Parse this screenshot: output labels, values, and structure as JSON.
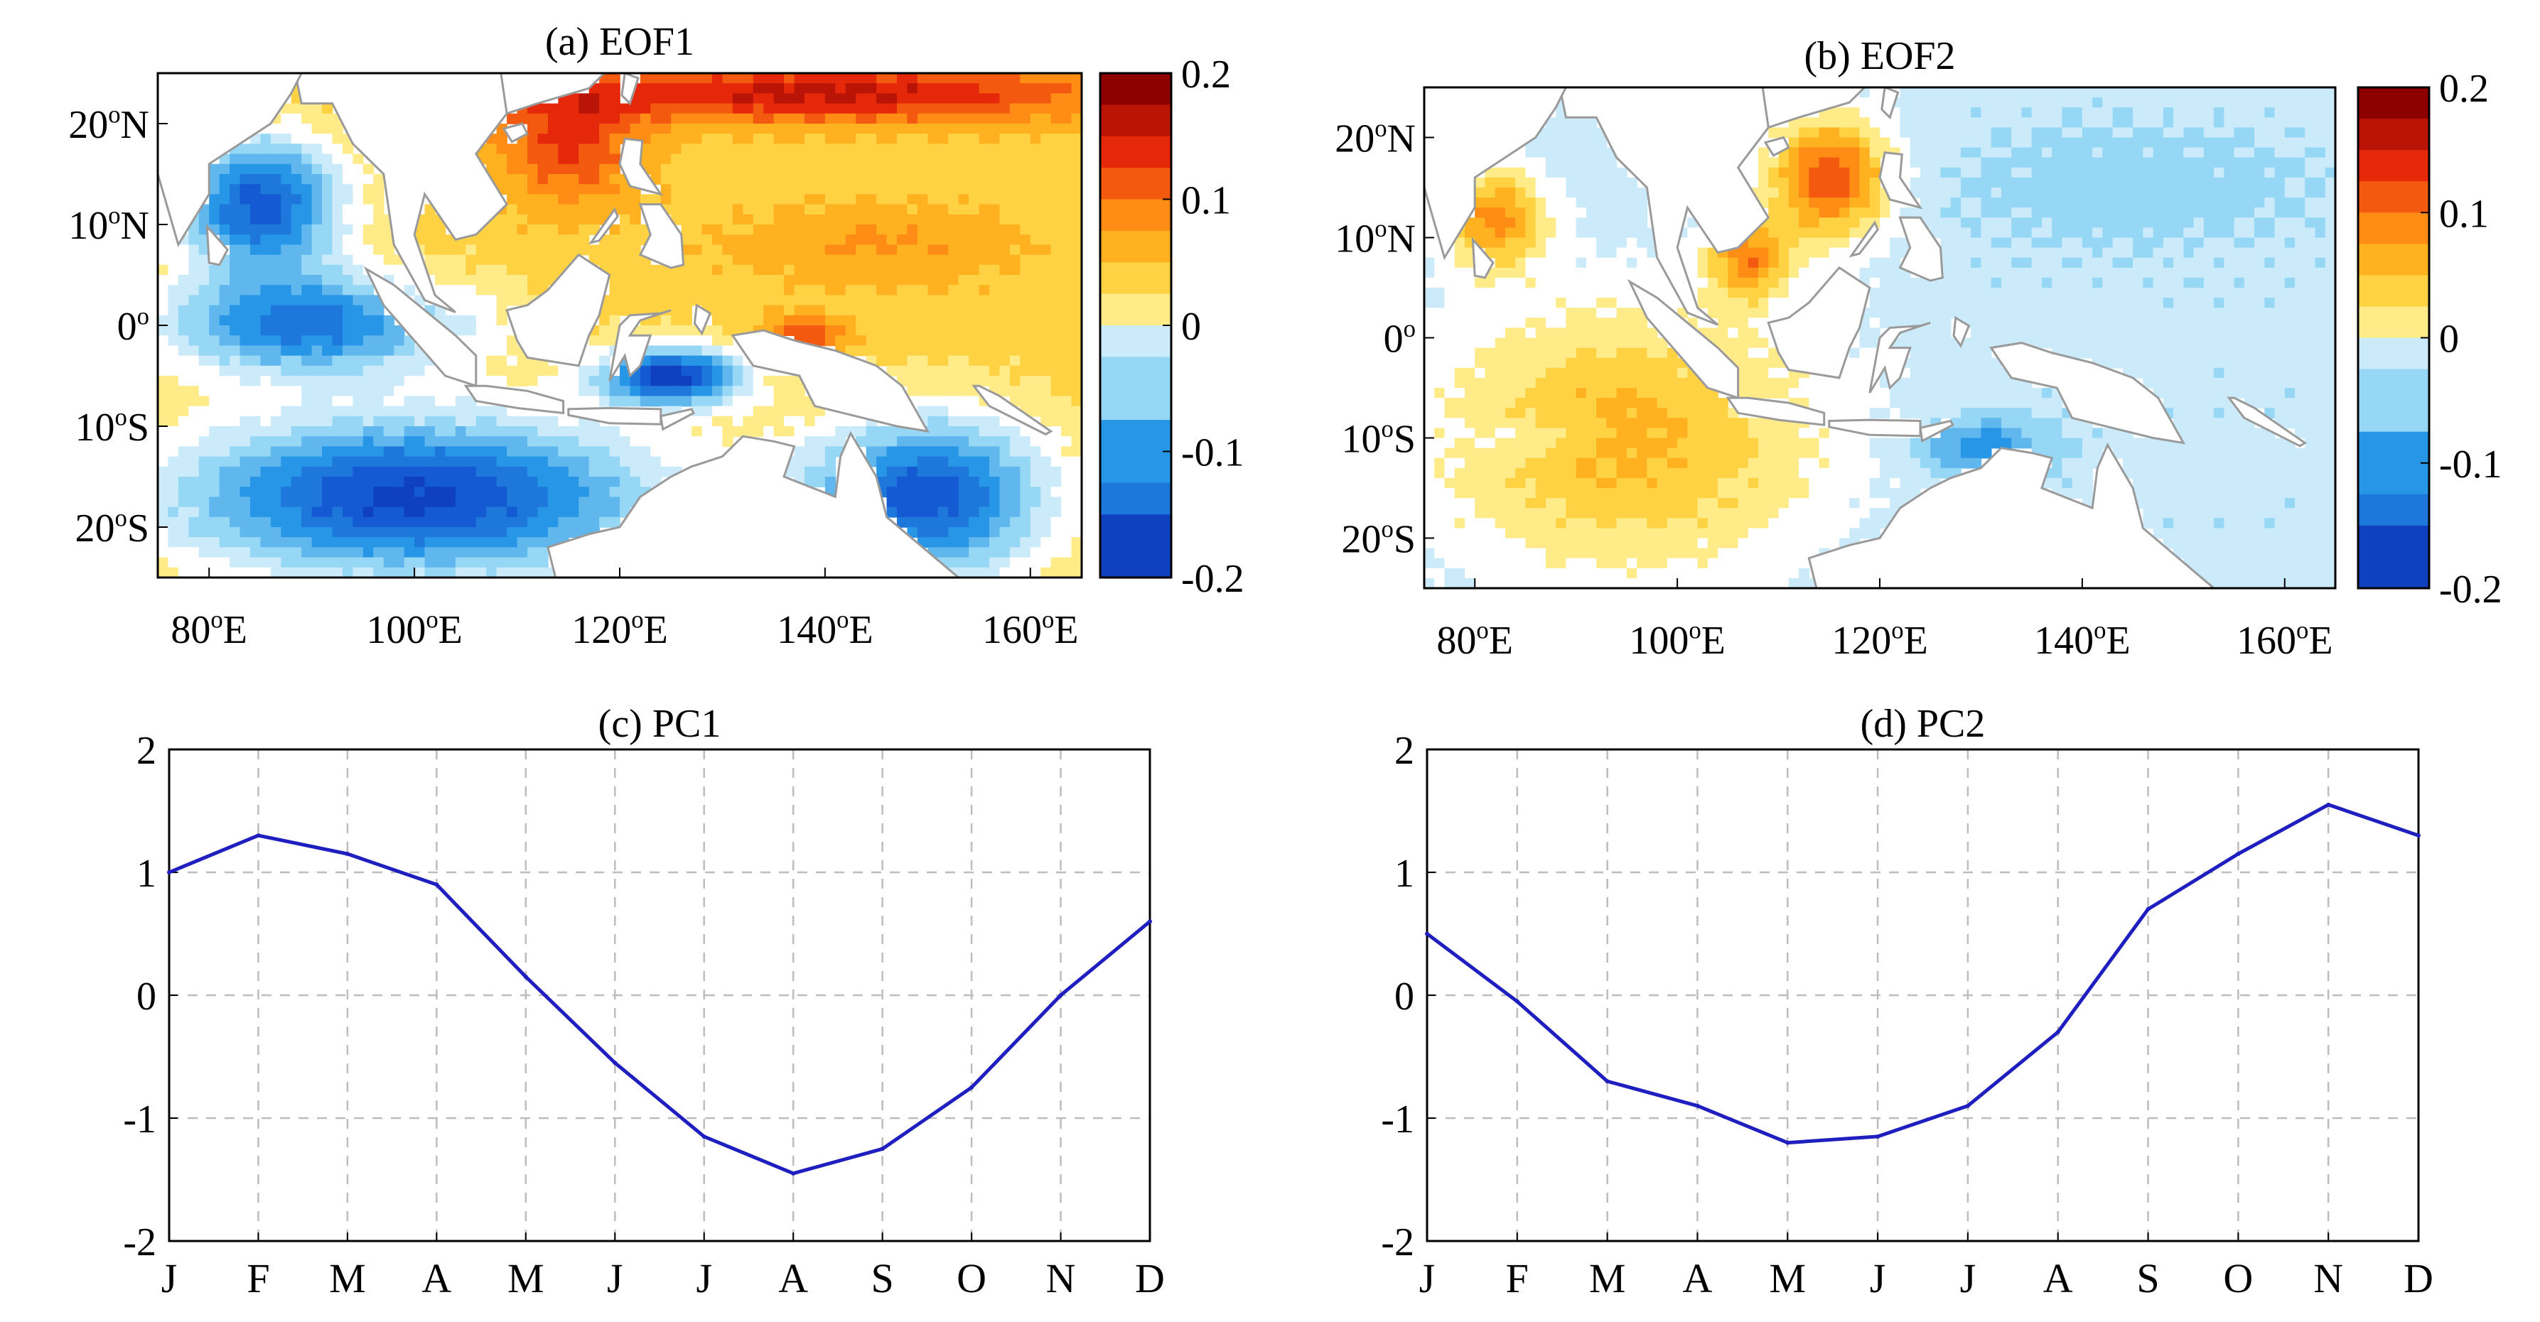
{
  "figure": {
    "colors": {
      "ocean_base": "#ffffff",
      "land": "#ffffff",
      "coast": "#9a9a9a",
      "axis": "#000000",
      "grid": "#bdbdbd",
      "line": "#1f1fbf"
    }
  },
  "chart_data": [
    {
      "id": "eof1",
      "type": "heatmap",
      "title": "(a) EOF1",
      "lon_range": [
        75,
        165
      ],
      "lat_range": [
        -25,
        25
      ],
      "x_ticks": [
        {
          "value": 80,
          "label": "80",
          "sup": "o",
          "suffix": "E"
        },
        {
          "value": 100,
          "label": "100",
          "sup": "o",
          "suffix": "E"
        },
        {
          "value": 120,
          "label": "120",
          "sup": "o",
          "suffix": "E"
        },
        {
          "value": 140,
          "label": "140",
          "sup": "o",
          "suffix": "E"
        },
        {
          "value": 160,
          "label": "160",
          "sup": "o",
          "suffix": "E"
        }
      ],
      "y_ticks": [
        {
          "value": 20,
          "label": "20",
          "sup": "o",
          "suffix": "N"
        },
        {
          "value": 10,
          "label": "10",
          "sup": "o",
          "suffix": "N"
        },
        {
          "value": 0,
          "label": "0",
          "sup": "o",
          "suffix": ""
        },
        {
          "value": -10,
          "label": "10",
          "sup": "o",
          "suffix": "S"
        },
        {
          "value": -20,
          "label": "20",
          "sup": "o",
          "suffix": "S"
        }
      ],
      "colorbar": {
        "range": [
          -0.2,
          0.2
        ],
        "ticks": [
          "0.2",
          "0.1",
          "0",
          "-0.1",
          "-0.2"
        ],
        "tick_values": [
          0.2,
          0.1,
          0,
          -0.1,
          -0.2
        ]
      },
      "pattern": {
        "base": 0.05,
        "features": [
          {
            "lon": 140,
            "lat": 23,
            "value": 0.17,
            "rlon": 30,
            "rlat": 3
          },
          {
            "lon": 115,
            "lat": 18,
            "value": 0.14,
            "rlon": 7,
            "rlat": 6
          },
          {
            "lon": 145,
            "lat": 8,
            "value": 0.09,
            "rlon": 14,
            "rlat": 4
          },
          {
            "lon": 138,
            "lat": -1,
            "value": 0.14,
            "rlon": 4,
            "rlat": 2
          },
          {
            "lon": 85,
            "lat": 12,
            "value": -0.15,
            "rlon": 8,
            "rlat": 7
          },
          {
            "lon": 90,
            "lat": 0,
            "value": -0.12,
            "rlon": 15,
            "rlat": 5
          },
          {
            "lon": 100,
            "lat": -17,
            "value": -0.17,
            "rlon": 24,
            "rlat": 8
          },
          {
            "lon": 125,
            "lat": -5,
            "value": -0.17,
            "rlon": 7,
            "rlat": 3
          },
          {
            "lon": 150,
            "lat": -17,
            "value": -0.15,
            "rlon": 12,
            "rlat": 8
          }
        ]
      }
    },
    {
      "id": "eof2",
      "type": "heatmap",
      "title": "(b) EOF2",
      "lon_range": [
        75,
        165
      ],
      "lat_range": [
        -25,
        25
      ],
      "x_ticks": [
        {
          "value": 80,
          "label": "80",
          "sup": "o",
          "suffix": "E"
        },
        {
          "value": 100,
          "label": "100",
          "sup": "o",
          "suffix": "E"
        },
        {
          "value": 120,
          "label": "120",
          "sup": "o",
          "suffix": "E"
        },
        {
          "value": 140,
          "label": "140",
          "sup": "o",
          "suffix": "E"
        },
        {
          "value": 160,
          "label": "160",
          "sup": "o",
          "suffix": "E"
        }
      ],
      "y_ticks": [
        {
          "value": 20,
          "label": "20",
          "sup": "o",
          "suffix": "N"
        },
        {
          "value": 10,
          "label": "10",
          "sup": "o",
          "suffix": "N"
        },
        {
          "value": 0,
          "label": "0",
          "sup": "o",
          "suffix": ""
        },
        {
          "value": -10,
          "label": "10",
          "sup": "o",
          "suffix": "S"
        },
        {
          "value": -20,
          "label": "20",
          "sup": "o",
          "suffix": "S"
        }
      ],
      "colorbar": {
        "range": [
          -0.2,
          0.2
        ],
        "ticks": [
          "0.2",
          "0.1",
          "0",
          "-0.1",
          "-0.2"
        ],
        "tick_values": [
          0.2,
          0.1,
          0,
          -0.1,
          -0.2
        ]
      },
      "pattern": {
        "base": -0.03,
        "features": [
          {
            "lon": 95,
            "lat": -10,
            "value": 0.07,
            "rlon": 20,
            "rlat": 14
          },
          {
            "lon": 82,
            "lat": 12,
            "value": 0.09,
            "rlon": 5,
            "rlat": 5
          },
          {
            "lon": 115,
            "lat": 16,
            "value": 0.13,
            "rlon": 6,
            "rlat": 6
          },
          {
            "lon": 107,
            "lat": 8,
            "value": 0.09,
            "rlon": 4,
            "rlat": 4
          },
          {
            "lon": 130,
            "lat": -11,
            "value": -0.11,
            "rlon": 6,
            "rlat": 3
          },
          {
            "lon": 145,
            "lat": 15,
            "value": -0.05,
            "rlon": 18,
            "rlat": 6
          },
          {
            "lon": 85,
            "lat": -10,
            "value": -0.06,
            "rlon": 6,
            "rlat": 2
          }
        ]
      }
    },
    {
      "id": "pc1",
      "type": "line",
      "title": "(c) PC1",
      "categories": [
        "J",
        "F",
        "M",
        "A",
        "M",
        "J",
        "J",
        "A",
        "S",
        "O",
        "N",
        "D"
      ],
      "values": [
        1.0,
        1.3,
        1.15,
        0.9,
        0.15,
        -0.55,
        -1.15,
        -1.45,
        -1.25,
        -0.75,
        0.0,
        0.6
      ],
      "ylim": [
        -2,
        2
      ],
      "y_ticks": [
        "2",
        "1",
        "0",
        "-1",
        "-2"
      ],
      "y_tick_values": [
        2,
        1,
        0,
        -1,
        -2
      ],
      "grid": true
    },
    {
      "id": "pc2",
      "type": "line",
      "title": "(d) PC2",
      "categories": [
        "J",
        "F",
        "M",
        "A",
        "M",
        "J",
        "J",
        "A",
        "S",
        "O",
        "N",
        "D"
      ],
      "values": [
        0.5,
        -0.05,
        -0.7,
        -0.9,
        -1.2,
        -1.15,
        -0.9,
        -0.3,
        0.7,
        1.15,
        1.55,
        1.3
      ],
      "ylim": [
        -2,
        2
      ],
      "y_ticks": [
        "2",
        "1",
        "0",
        "-1",
        "-2"
      ],
      "y_tick_values": [
        2,
        1,
        0,
        -1,
        -2
      ],
      "grid": true
    }
  ]
}
